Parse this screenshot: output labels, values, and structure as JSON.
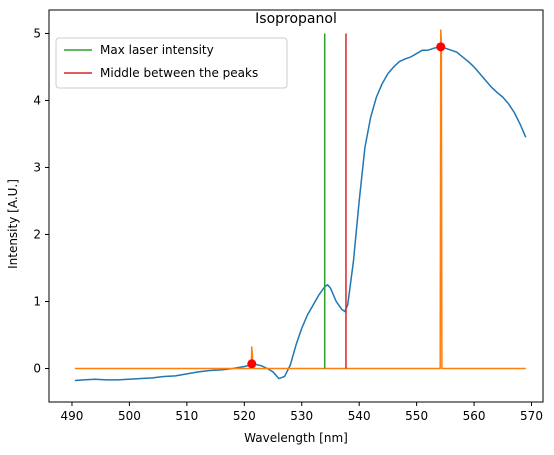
{
  "chart_data": {
    "type": "line",
    "title": "Isopropanol",
    "xlabel": "Wavelength [nm]",
    "ylabel": "Intensity [A.U.]",
    "xlim": [
      486,
      572
    ],
    "ylim": [
      -0.5,
      5.35
    ],
    "xticks": [
      490,
      500,
      510,
      520,
      530,
      540,
      550,
      560,
      570
    ],
    "yticks": [
      0,
      1,
      2,
      3,
      4,
      5
    ],
    "grid": false,
    "legend_position": "top-left",
    "legend": [
      {
        "label": "Max laser intensity",
        "color": "#2ca02c"
      },
      {
        "label": "Middle between the peaks",
        "color": "#d62728"
      }
    ],
    "series": [
      {
        "color": "#1f77b4",
        "x": [
          490.5,
          492,
          494,
          496,
          498,
          500,
          502,
          504,
          506,
          508,
          510,
          512,
          514,
          516,
          518,
          520,
          521,
          522,
          523,
          524,
          525,
          526,
          527,
          528,
          529,
          530,
          531,
          532,
          533,
          534,
          534.5,
          535,
          536,
          537,
          537.5,
          538,
          539,
          540,
          541,
          542,
          543,
          544,
          545,
          546,
          547,
          548,
          549,
          550,
          551,
          552,
          553,
          554,
          555,
          556,
          557,
          558,
          559,
          560,
          561,
          562,
          563,
          564,
          565,
          566,
          567,
          568,
          569
        ],
        "y": [
          -0.18,
          -0.17,
          -0.16,
          -0.17,
          -0.17,
          -0.16,
          -0.15,
          -0.14,
          -0.12,
          -0.11,
          -0.08,
          -0.05,
          -0.03,
          -0.02,
          0.0,
          0.03,
          0.05,
          0.06,
          0.04,
          0.0,
          -0.05,
          -0.15,
          -0.12,
          0.05,
          0.35,
          0.6,
          0.8,
          0.95,
          1.1,
          1.22,
          1.25,
          1.2,
          1.0,
          0.88,
          0.85,
          0.95,
          1.6,
          2.5,
          3.3,
          3.75,
          4.05,
          4.25,
          4.4,
          4.5,
          4.58,
          4.62,
          4.65,
          4.7,
          4.75,
          4.75,
          4.78,
          4.8,
          4.78,
          4.75,
          4.72,
          4.65,
          4.58,
          4.5,
          4.4,
          4.3,
          4.2,
          4.12,
          4.05,
          3.95,
          3.82,
          3.65,
          3.45
        ]
      },
      {
        "color": "#ff7f0e",
        "x": [
          490.5,
          521.2,
          521.3,
          521.4,
          521.5,
          554.1,
          554.2,
          554.3,
          554.4,
          569
        ],
        "y": [
          0,
          0,
          0.32,
          0.2,
          0,
          0,
          5.05,
          4.9,
          0,
          0
        ]
      },
      {
        "color": "#2ca02c",
        "x": [
          534,
          534
        ],
        "y": [
          0,
          5
        ]
      },
      {
        "color": "#d62728",
        "x": [
          537.7,
          537.7
        ],
        "y": [
          0,
          5
        ]
      }
    ],
    "points": {
      "color": "#ff0000",
      "x": [
        521.3,
        554.2
      ],
      "y": [
        0.07,
        4.8
      ]
    }
  }
}
